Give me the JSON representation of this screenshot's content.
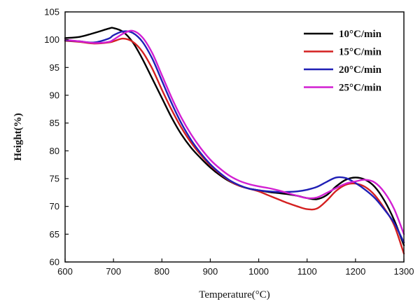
{
  "chart_data": {
    "type": "line",
    "xlabel": "Temperature(°C)",
    "ylabel": "Height(%)",
    "xlim": [
      600,
      1300
    ],
    "ylim": [
      60,
      105
    ],
    "xticks": [
      600,
      700,
      800,
      900,
      1000,
      1100,
      1200,
      1300
    ],
    "yticks": [
      60,
      65,
      70,
      75,
      80,
      85,
      90,
      95,
      100,
      105
    ],
    "grid": false,
    "legend_position": "top-right",
    "series": [
      {
        "name": "10°C/min",
        "color": "#000000",
        "x": [
          600,
          630,
          660,
          690,
          700,
          720,
          740,
          760,
          780,
          800,
          820,
          840,
          860,
          880,
          900,
          920,
          940,
          960,
          980,
          1000,
          1020,
          1040,
          1060,
          1080,
          1100,
          1120,
          1140,
          1160,
          1180,
          1200,
          1220,
          1240,
          1260,
          1280,
          1300
        ],
        "y": [
          100.3,
          100.5,
          101.2,
          102.0,
          102.1,
          101.4,
          99.5,
          96.5,
          93.0,
          89.5,
          86.0,
          83.0,
          80.6,
          78.7,
          77.0,
          75.6,
          74.5,
          73.7,
          73.2,
          72.9,
          72.6,
          72.4,
          72.2,
          71.9,
          71.5,
          71.3,
          72.0,
          73.6,
          74.8,
          75.2,
          74.8,
          73.5,
          71.0,
          67.5,
          63.0
        ]
      },
      {
        "name": "15°C/min",
        "color": "#d42020",
        "x": [
          600,
          630,
          660,
          690,
          700,
          720,
          740,
          760,
          780,
          800,
          820,
          840,
          860,
          880,
          900,
          920,
          940,
          960,
          980,
          1000,
          1020,
          1040,
          1060,
          1080,
          1100,
          1120,
          1140,
          1160,
          1180,
          1200,
          1220,
          1240,
          1260,
          1280,
          1300
        ],
        "y": [
          99.8,
          99.6,
          99.3,
          99.5,
          99.7,
          100.2,
          99.6,
          97.8,
          94.8,
          91.0,
          87.4,
          84.2,
          81.5,
          79.3,
          77.4,
          75.9,
          74.6,
          73.7,
          73.2,
          72.7,
          72.0,
          71.3,
          70.6,
          70.0,
          69.5,
          69.6,
          71.0,
          72.8,
          73.9,
          74.1,
          73.5,
          72.0,
          69.6,
          66.6,
          61.5
        ]
      },
      {
        "name": "20°C/min",
        "color": "#1f1fb5",
        "x": [
          600,
          630,
          660,
          690,
          700,
          720,
          740,
          760,
          780,
          800,
          820,
          840,
          860,
          880,
          900,
          920,
          940,
          960,
          980,
          1000,
          1020,
          1040,
          1060,
          1080,
          1100,
          1120,
          1140,
          1160,
          1180,
          1200,
          1220,
          1240,
          1260,
          1280,
          1300
        ],
        "y": [
          99.9,
          99.7,
          99.5,
          100.2,
          100.8,
          101.5,
          101.2,
          99.6,
          96.6,
          92.6,
          88.6,
          85.0,
          82.0,
          79.6,
          77.6,
          76.0,
          74.7,
          73.8,
          73.2,
          72.9,
          72.7,
          72.6,
          72.6,
          72.7,
          73.0,
          73.5,
          74.4,
          75.2,
          75.1,
          74.2,
          73.0,
          71.5,
          69.4,
          67.0,
          63.5
        ]
      },
      {
        "name": "25°C/min",
        "color": "#d21fd2",
        "x": [
          600,
          630,
          660,
          690,
          700,
          720,
          740,
          760,
          780,
          800,
          820,
          840,
          860,
          880,
          900,
          920,
          940,
          960,
          980,
          1000,
          1020,
          1040,
          1060,
          1080,
          1100,
          1120,
          1140,
          1160,
          1180,
          1200,
          1220,
          1240,
          1260,
          1280,
          1300
        ],
        "y": [
          100.0,
          99.7,
          99.4,
          99.6,
          100.0,
          101.1,
          101.6,
          100.4,
          97.6,
          93.6,
          89.6,
          86.0,
          83.0,
          80.5,
          78.4,
          76.8,
          75.5,
          74.6,
          74.0,
          73.6,
          73.3,
          72.9,
          72.4,
          71.9,
          71.5,
          71.6,
          72.4,
          73.3,
          74.1,
          74.5,
          74.8,
          74.3,
          72.5,
          69.5,
          65.0
        ]
      }
    ]
  }
}
